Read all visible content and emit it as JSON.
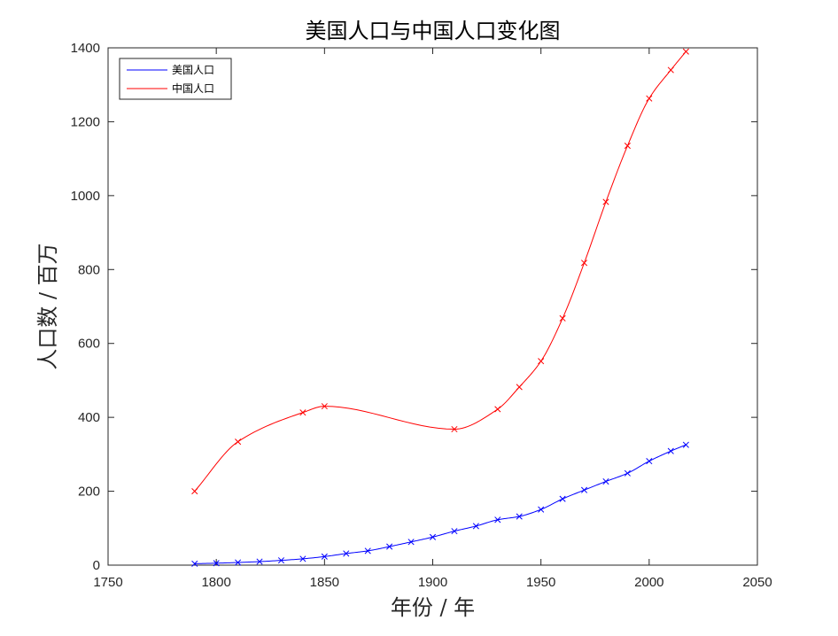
{
  "chart_data": {
    "type": "line",
    "title": "美国人口与中国人口变化图",
    "xlabel": "年份 / 年",
    "ylabel": "人口数 / 百万",
    "xlim": [
      1750,
      2050
    ],
    "ylim": [
      0,
      1400
    ],
    "xticks": [
      1750,
      1800,
      1850,
      1900,
      1950,
      2000,
      2050
    ],
    "yticks": [
      0,
      200,
      400,
      600,
      800,
      1000,
      1200,
      1400
    ],
    "grid": false,
    "legend_position": "top-left",
    "marker": "x",
    "series": [
      {
        "name": "美国人口",
        "color": "#0000ff",
        "x": [
          1790,
          1800,
          1810,
          1820,
          1830,
          1840,
          1850,
          1860,
          1870,
          1880,
          1890,
          1900,
          1910,
          1920,
          1930,
          1940,
          1950,
          1960,
          1970,
          1980,
          1990,
          2000,
          2010,
          2017
        ],
        "y": [
          3.9,
          5.3,
          7.2,
          9.6,
          12.9,
          17.1,
          23.2,
          31.4,
          38.6,
          50.2,
          62.9,
          76.0,
          92.0,
          105.7,
          122.8,
          131.7,
          150.7,
          179.3,
          203.2,
          226.5,
          248.7,
          281.4,
          308.7,
          325.7
        ]
      },
      {
        "name": "中国人口",
        "color": "#ff0000",
        "x": [
          1790,
          1810,
          1840,
          1850,
          1910,
          1930,
          1940,
          1950,
          1960,
          1970,
          1980,
          1990,
          2000,
          2010,
          2017
        ],
        "y": [
          200,
          334,
          413,
          430,
          368,
          422,
          482,
          552,
          668,
          818,
          983,
          1135,
          1263,
          1340,
          1390
        ]
      }
    ]
  }
}
